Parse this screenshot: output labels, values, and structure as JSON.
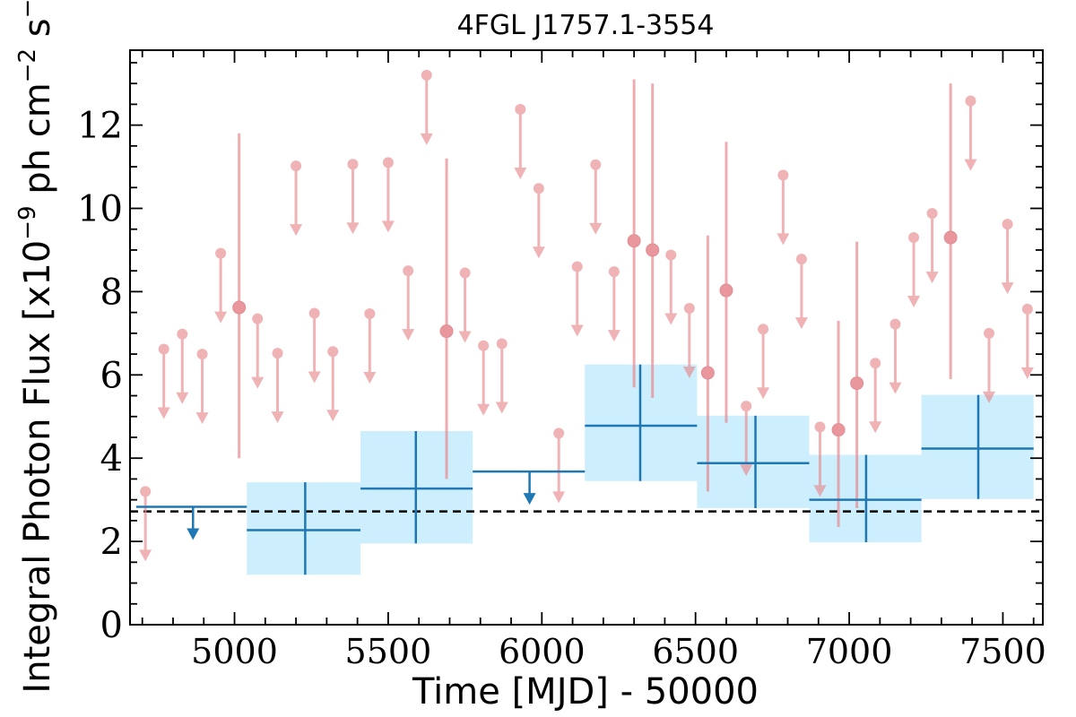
{
  "chart_data": {
    "type": "scatter",
    "title": "4FGL J1757.1-3554",
    "xlabel": "Time [MJD] - 50000",
    "ylabel_prefix": "Integral Photon Flux [x10",
    "ylabel_exp1": "−9",
    "ylabel_mid": " ph cm",
    "ylabel_exp2": "−2",
    "ylabel_mid2": " s",
    "ylabel_exp3": "−1",
    "ylabel_suffix": "]",
    "xlim": [
      4660,
      7630
    ],
    "ylim": [
      0,
      13.8
    ],
    "xticks": [
      5000,
      5500,
      6000,
      6500,
      7000,
      7500
    ],
    "yticks": [
      0,
      2,
      4,
      6,
      8,
      10,
      12
    ],
    "mean_flux": 2.72,
    "colors": {
      "short_bins": "#e8898f",
      "long_bins": "#1f77b4",
      "long_band": "#cdeefd",
      "mean_line": "#000000"
    },
    "short_bin_detections": [
      {
        "x": 5015,
        "y": 7.62,
        "ylo": 4.0,
        "yhi": 11.8
      },
      {
        "x": 5690,
        "y": 7.05,
        "ylo": 3.5,
        "yhi": 11.2
      },
      {
        "x": 6300,
        "y": 9.22,
        "ylo": 5.7,
        "yhi": 13.1
      },
      {
        "x": 6360,
        "y": 9.0,
        "ylo": 5.45,
        "yhi": 13.0
      },
      {
        "x": 6540,
        "y": 6.05,
        "ylo": 3.2,
        "yhi": 9.35
      },
      {
        "x": 6600,
        "y": 8.03,
        "ylo": 4.85,
        "yhi": 11.6
      },
      {
        "x": 6965,
        "y": 4.68,
        "ylo": 2.35,
        "yhi": 7.3
      },
      {
        "x": 7025,
        "y": 5.8,
        "ylo": 2.8,
        "yhi": 9.2
      },
      {
        "x": 7330,
        "y": 9.3,
        "ylo": 5.9,
        "yhi": 13.0
      }
    ],
    "short_bin_upper_limits": [
      {
        "x": 4710,
        "y": 3.2
      },
      {
        "x": 4770,
        "y": 6.62
      },
      {
        "x": 4830,
        "y": 6.98
      },
      {
        "x": 4895,
        "y": 6.5
      },
      {
        "x": 4955,
        "y": 8.92
      },
      {
        "x": 5075,
        "y": 7.35
      },
      {
        "x": 5140,
        "y": 6.52
      },
      {
        "x": 5200,
        "y": 11.02
      },
      {
        "x": 5260,
        "y": 7.48
      },
      {
        "x": 5320,
        "y": 6.56
      },
      {
        "x": 5385,
        "y": 11.06
      },
      {
        "x": 5440,
        "y": 7.47
      },
      {
        "x": 5500,
        "y": 11.1
      },
      {
        "x": 5565,
        "y": 8.5
      },
      {
        "x": 5625,
        "y": 13.2
      },
      {
        "x": 5750,
        "y": 8.45
      },
      {
        "x": 5810,
        "y": 6.7
      },
      {
        "x": 5870,
        "y": 6.75
      },
      {
        "x": 5930,
        "y": 12.38
      },
      {
        "x": 5990,
        "y": 10.48
      },
      {
        "x": 6055,
        "y": 4.6
      },
      {
        "x": 6115,
        "y": 8.6
      },
      {
        "x": 6175,
        "y": 11.05
      },
      {
        "x": 6235,
        "y": 8.48
      },
      {
        "x": 6420,
        "y": 8.88
      },
      {
        "x": 6480,
        "y": 7.6
      },
      {
        "x": 6665,
        "y": 5.25
      },
      {
        "x": 6720,
        "y": 7.1
      },
      {
        "x": 6785,
        "y": 10.8
      },
      {
        "x": 6845,
        "y": 8.78
      },
      {
        "x": 6905,
        "y": 4.75
      },
      {
        "x": 7085,
        "y": 6.28
      },
      {
        "x": 7150,
        "y": 7.22
      },
      {
        "x": 7210,
        "y": 9.3
      },
      {
        "x": 7270,
        "y": 9.88
      },
      {
        "x": 7395,
        "y": 12.58
      },
      {
        "x": 7455,
        "y": 7.0
      },
      {
        "x": 7515,
        "y": 9.62
      },
      {
        "x": 7580,
        "y": 7.58
      }
    ],
    "long_bin_detections": [
      {
        "x": 5230,
        "x0": 5040,
        "x1": 5410,
        "y": 2.27,
        "ylo": 1.2,
        "yhi": 3.42
      },
      {
        "x": 5590,
        "x0": 5410,
        "x1": 5775,
        "y": 3.27,
        "ylo": 1.95,
        "yhi": 4.65
      },
      {
        "x": 6320,
        "x0": 6140,
        "x1": 6505,
        "y": 4.78,
        "ylo": 3.45,
        "yhi": 6.25
      },
      {
        "x": 6695,
        "x0": 6505,
        "x1": 6870,
        "y": 3.88,
        "ylo": 2.8,
        "yhi": 5.02
      },
      {
        "x": 7055,
        "x0": 6870,
        "x1": 7235,
        "y": 3.0,
        "ylo": 1.98,
        "yhi": 4.08
      },
      {
        "x": 7420,
        "x0": 7235,
        "x1": 7600,
        "y": 4.23,
        "ylo": 3.02,
        "yhi": 5.52
      }
    ],
    "long_bin_upper_limits": [
      {
        "x": 4865,
        "x0": 4680,
        "x1": 5040,
        "y": 2.83
      },
      {
        "x": 5960,
        "x0": 5775,
        "x1": 6140,
        "y": 3.68
      }
    ]
  }
}
